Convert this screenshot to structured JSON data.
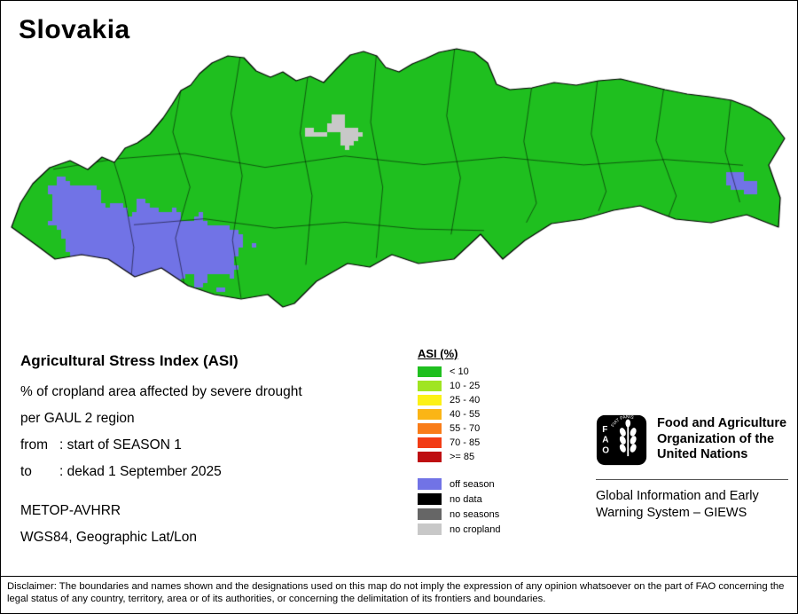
{
  "title": "Slovakia",
  "info": {
    "heading": "Agricultural Stress Index (ASI)",
    "line1": "% of cropland area affected by severe drought",
    "line2": "per GAUL 2 region",
    "from_label": "from",
    "from_value": ": start of SEASON 1",
    "to_label": "to",
    "to_value": ": dekad 1 September 2025",
    "sensor": "METOP-AVHRR",
    "projection": "WGS84, Geographic Lat/Lon"
  },
  "legend": {
    "title": "ASI (%)",
    "classes": [
      {
        "label": "< 10",
        "color": "#1FBF1F"
      },
      {
        "label": "10 - 25",
        "color": "#A0E522"
      },
      {
        "label": "25 - 40",
        "color": "#FCF116"
      },
      {
        "label": "40 - 55",
        "color": "#FBB515"
      },
      {
        "label": "55 - 70",
        "color": "#F97C18"
      },
      {
        "label": "70 - 85",
        "color": "#F23C15"
      },
      {
        "label": ">= 85",
        "color": "#BE0E11"
      }
    ],
    "extras": [
      {
        "label": "off season",
        "color": "#7173E6"
      },
      {
        "label": "no data",
        "color": "#000000"
      },
      {
        "label": "no seasons",
        "color": "#666666"
      },
      {
        "label": "no cropland",
        "color": "#C8C8C8"
      }
    ]
  },
  "fao": {
    "logo_acronym": "FAO",
    "logo_motto": "FIAT PANIS",
    "org_text": "Food and Agriculture Organization of the United Nations",
    "giews_text": "Global Information and Early Warning System – GIEWS"
  },
  "map": {
    "country": "Slovakia",
    "colors": {
      "cropland_ok": "#1FBF1F",
      "off_season": "#7173E6",
      "no_cropland": "#C8C8C8",
      "boundary": "#000000"
    }
  },
  "disclaimer": "Disclaimer: The boundaries and names shown and the designations used on this map do not imply the expression of any opinion whatsoever on the part of FAO concerning the legal status of any country, territory, area or of its authorities, or concerning the delimitation of its frontiers and boundaries."
}
